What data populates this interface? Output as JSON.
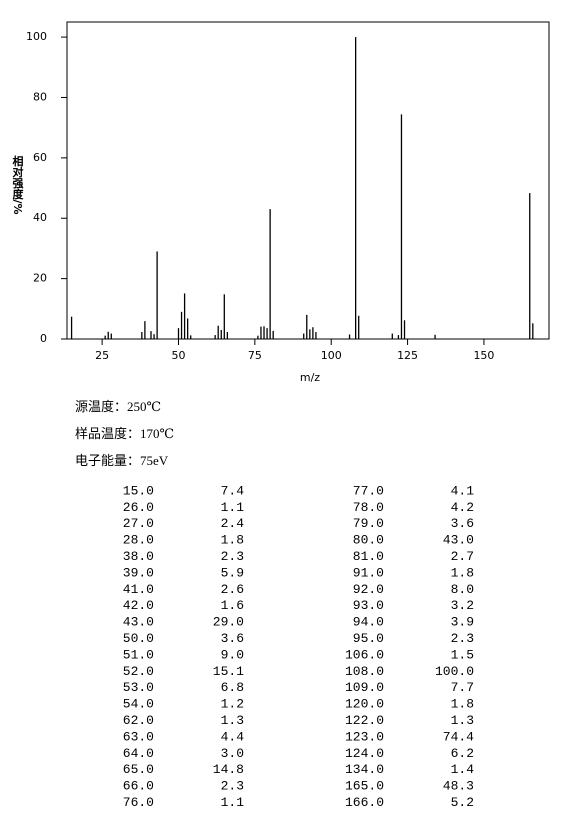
{
  "chart_data": {
    "type": "bar",
    "x_label": "m/z",
    "y_label": "相对强度/%",
    "color": "#000000",
    "x": [
      15,
      26,
      27,
      28,
      38,
      39,
      41,
      42,
      43,
      50,
      51,
      52,
      53,
      54,
      62,
      63,
      64,
      65,
      66,
      76,
      77,
      78,
      79,
      80,
      81,
      91,
      92,
      93,
      94,
      95,
      106,
      108,
      109,
      120,
      122,
      123,
      124,
      134,
      165,
      166
    ],
    "values": [
      7.4,
      1.1,
      2.4,
      1.8,
      2.3,
      5.9,
      2.6,
      1.6,
      29.0,
      3.6,
      9.0,
      15.1,
      6.8,
      1.2,
      1.3,
      4.4,
      3.0,
      14.8,
      2.3,
      1.1,
      4.1,
      4.2,
      3.6,
      43.0,
      2.7,
      1.8,
      8.0,
      3.2,
      3.9,
      2.3,
      1.5,
      100.0,
      7.7,
      1.8,
      1.3,
      74.4,
      6.2,
      1.4,
      48.3,
      5.2
    ],
    "xlim": [
      13.5,
      171.3
    ],
    "xticks": [
      25,
      50,
      75,
      100,
      125,
      150
    ],
    "ylim": [
      0,
      105
    ],
    "yticks": [
      0,
      20,
      40,
      60,
      80,
      100
    ]
  },
  "conditions": [
    "源温度：250℃",
    "样品温度：170℃",
    "电子能量：75eV"
  ],
  "table": {
    "rows": [
      [
        "15.0",
        "7.4",
        "77.0",
        "4.1"
      ],
      [
        "26.0",
        "1.1",
        "78.0",
        "4.2"
      ],
      [
        "27.0",
        "2.4",
        "79.0",
        "3.6"
      ],
      [
        "28.0",
        "1.8",
        "80.0",
        "43.0"
      ],
      [
        "38.0",
        "2.3",
        "81.0",
        "2.7"
      ],
      [
        "39.0",
        "5.9",
        "91.0",
        "1.8"
      ],
      [
        "41.0",
        "2.6",
        "92.0",
        "8.0"
      ],
      [
        "42.0",
        "1.6",
        "93.0",
        "3.2"
      ],
      [
        "43.0",
        "29.0",
        "94.0",
        "3.9"
      ],
      [
        "50.0",
        "3.6",
        "95.0",
        "2.3"
      ],
      [
        "51.0",
        "9.0",
        "106.0",
        "1.5"
      ],
      [
        "52.0",
        "15.1",
        "108.0",
        "100.0"
      ],
      [
        "53.0",
        "6.8",
        "109.0",
        "7.7"
      ],
      [
        "54.0",
        "1.2",
        "120.0",
        "1.8"
      ],
      [
        "62.0",
        "1.3",
        "122.0",
        "1.3"
      ],
      [
        "63.0",
        "4.4",
        "123.0",
        "74.4"
      ],
      [
        "64.0",
        "3.0",
        "124.0",
        "6.2"
      ],
      [
        "65.0",
        "14.8",
        "134.0",
        "1.4"
      ],
      [
        "66.0",
        "2.3",
        "165.0",
        "48.3"
      ],
      [
        "76.0",
        "1.1",
        "166.0",
        "5.2"
      ]
    ]
  }
}
